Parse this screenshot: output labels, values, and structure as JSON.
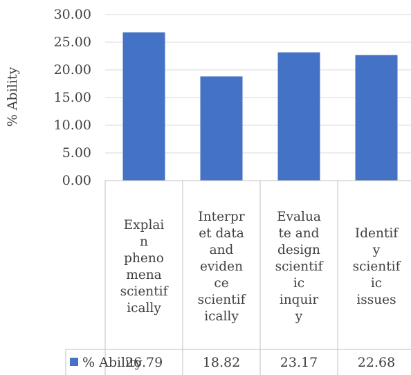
{
  "chart_data": {
    "type": "bar",
    "ylabel": "% Ability",
    "xlabel": "",
    "ylim": [
      0,
      30
    ],
    "yticks": [
      "0.00",
      "5.00",
      "10.00",
      "15.00",
      "20.00",
      "25.00",
      "30.00"
    ],
    "grid": true,
    "categories": [
      "Explain phenomena scientifically",
      "Interpret data and evidence scientifically",
      "Evaluate and design scientific inquiry",
      "Identify scientific issues"
    ],
    "category_lines": [
      [
        "Explai",
        "n",
        "pheno",
        "mena",
        "scientif",
        "ically"
      ],
      [
        "Interpr",
        "et data",
        "and",
        "eviden",
        "ce",
        "scientif",
        "ically"
      ],
      [
        "Evalua",
        "te and",
        "design",
        "scientif",
        "ic",
        "inquir",
        "y"
      ],
      [
        "Identif",
        "y",
        "scientif",
        "ic",
        "issues"
      ]
    ],
    "series": [
      {
        "name": "% Ability",
        "values": [
          26.79,
          18.82,
          23.17,
          22.68
        ],
        "value_labels": [
          "26.79",
          "18.82",
          "23.17",
          "22.68"
        ],
        "color": "#4472C4"
      }
    ],
    "legend_position": "data-table"
  }
}
